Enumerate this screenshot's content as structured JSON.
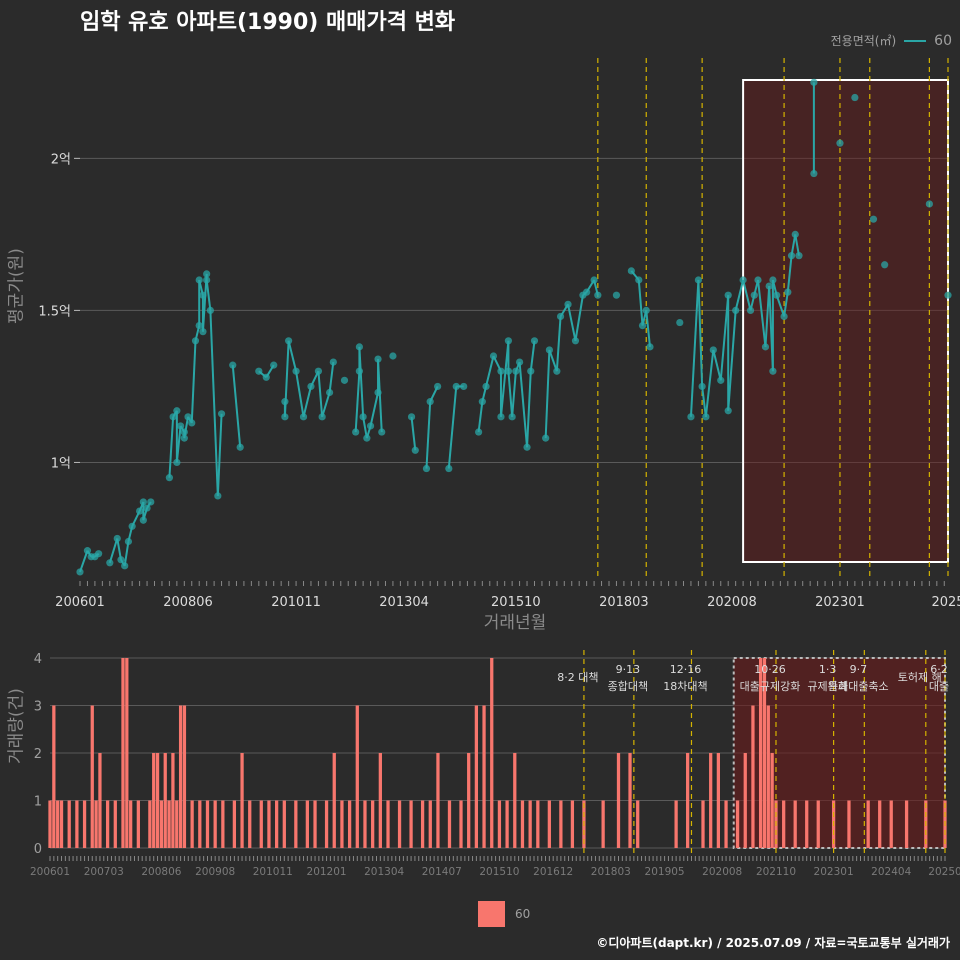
{
  "title": "임학 유호 아파트(1990) 매매가격 변화",
  "footer": "©디아파트(dapt.kr) / 2025.07.09 / 자료=국토교통부 실거래가",
  "colors": {
    "line": "#2aa6a6",
    "bar": "#f8766d",
    "highlight": "#6b1a1a",
    "policy": "#d4b300"
  },
  "chart_data": [
    {
      "type": "line",
      "title": "임학 유호 아파트(1990) 매매가격 변화",
      "xlabel": "거래년월",
      "ylabel": "평균가(원)",
      "legend": {
        "title": "전용면적(㎡)",
        "entries": [
          "60"
        ],
        "placement": "top-right"
      },
      "x_tick_labels": [
        "200601",
        "200806",
        "201011",
        "201304",
        "201510",
        "201803",
        "202008",
        "202301",
        "2025"
      ],
      "y_tick_labels": [
        "1억",
        "1.5억",
        "2억"
      ],
      "y_ticks": [
        1.0,
        1.5,
        2.0
      ],
      "ylim": [
        0.62,
        2.33
      ],
      "xlim": [
        "2006-01",
        "2025-06"
      ],
      "highlight_range": [
        "2020-11",
        "2025-06"
      ],
      "policy_dates": [
        "2017-08",
        "2018-09",
        "2019-12",
        "2021-10",
        "2023-01",
        "2023-09",
        "2025-01",
        "2025-06"
      ],
      "series": [
        {
          "name": "60",
          "points": [
            [
              "2006-01",
              0.64
            ],
            [
              "2006-03",
              0.71
            ],
            [
              "2006-04",
              0.69
            ],
            [
              "2006-05",
              0.69
            ],
            [
              "2006-06",
              0.7
            ],
            [
              "2006-09",
              0.67
            ],
            [
              "2006-11",
              0.75
            ],
            [
              "2006-12",
              0.68
            ],
            [
              "2007-01",
              0.66
            ],
            [
              "2007-02",
              0.74
            ],
            [
              "2007-03",
              0.79
            ],
            [
              "2007-05",
              0.84
            ],
            [
              "2007-06",
              0.87
            ],
            [
              "2007-06",
              0.81
            ],
            [
              "2007-07",
              0.85
            ],
            [
              "2007-08",
              0.87
            ],
            [
              "2008-01",
              0.95
            ],
            [
              "2008-02",
              1.15
            ],
            [
              "2008-03",
              1.17
            ],
            [
              "2008-03",
              1.0
            ],
            [
              "2008-04",
              1.12
            ],
            [
              "2008-05",
              1.1
            ],
            [
              "2008-05",
              1.08
            ],
            [
              "2008-06",
              1.15
            ],
            [
              "2008-07",
              1.13
            ],
            [
              "2008-08",
              1.4
            ],
            [
              "2008-09",
              1.45
            ],
            [
              "2008-09",
              1.6
            ],
            [
              "2008-10",
              1.55
            ],
            [
              "2008-10",
              1.43
            ],
            [
              "2008-11",
              1.62
            ],
            [
              "2008-11",
              1.6
            ],
            [
              "2008-12",
              1.5
            ],
            [
              "2009-02",
              0.89
            ],
            [
              "2009-03",
              1.16
            ],
            [
              "2009-06",
              1.32
            ],
            [
              "2009-08",
              1.05
            ],
            [
              "2010-01",
              1.3
            ],
            [
              "2010-03",
              1.28
            ],
            [
              "2010-05",
              1.32
            ],
            [
              "2010-08",
              1.2
            ],
            [
              "2010-08",
              1.15
            ],
            [
              "2010-09",
              1.4
            ],
            [
              "2010-11",
              1.3
            ],
            [
              "2011-01",
              1.15
            ],
            [
              "2011-03",
              1.25
            ],
            [
              "2011-05",
              1.3
            ],
            [
              "2011-06",
              1.15
            ],
            [
              "2011-08",
              1.23
            ],
            [
              "2011-09",
              1.33
            ],
            [
              "2011-12",
              1.27
            ],
            [
              "2012-03",
              1.1
            ],
            [
              "2012-04",
              1.3
            ],
            [
              "2012-04",
              1.38
            ],
            [
              "2012-05",
              1.15
            ],
            [
              "2012-06",
              1.08
            ],
            [
              "2012-07",
              1.12
            ],
            [
              "2012-09",
              1.23
            ],
            [
              "2012-09",
              1.34
            ],
            [
              "2012-10",
              1.1
            ],
            [
              "2013-01",
              1.35
            ],
            [
              "2013-06",
              1.15
            ],
            [
              "2013-07",
              1.04
            ],
            [
              "2013-10",
              0.98
            ],
            [
              "2013-11",
              1.2
            ],
            [
              "2014-01",
              1.25
            ],
            [
              "2014-04",
              0.98
            ],
            [
              "2014-06",
              1.25
            ],
            [
              "2014-08",
              1.25
            ],
            [
              "2014-12",
              1.1
            ],
            [
              "2015-01",
              1.2
            ],
            [
              "2015-02",
              1.25
            ],
            [
              "2015-04",
              1.35
            ],
            [
              "2015-06",
              1.3
            ],
            [
              "2015-06",
              1.15
            ],
            [
              "2015-08",
              1.4
            ],
            [
              "2015-08",
              1.3
            ],
            [
              "2015-09",
              1.15
            ],
            [
              "2015-10",
              1.3
            ],
            [
              "2015-11",
              1.33
            ],
            [
              "2016-01",
              1.05
            ],
            [
              "2016-02",
              1.3
            ],
            [
              "2016-03",
              1.4
            ],
            [
              "2016-06",
              1.08
            ],
            [
              "2016-07",
              1.37
            ],
            [
              "2016-09",
              1.3
            ],
            [
              "2016-10",
              1.48
            ],
            [
              "2016-12",
              1.52
            ],
            [
              "2017-02",
              1.4
            ],
            [
              "2017-04",
              1.55
            ],
            [
              "2017-05",
              1.56
            ],
            [
              "2017-07",
              1.6
            ],
            [
              "2017-08",
              1.55
            ],
            [
              "2018-01",
              1.55
            ],
            [
              "2018-05",
              1.63
            ],
            [
              "2018-07",
              1.6
            ],
            [
              "2018-08",
              1.45
            ],
            [
              "2018-09",
              1.5
            ],
            [
              "2018-10",
              1.38
            ],
            [
              "2019-06",
              1.46
            ],
            [
              "2019-09",
              1.15
            ],
            [
              "2019-11",
              1.6
            ],
            [
              "2019-12",
              1.25
            ],
            [
              "2020-01",
              1.15
            ],
            [
              "2020-03",
              1.37
            ],
            [
              "2020-05",
              1.27
            ],
            [
              "2020-07",
              1.55
            ],
            [
              "2020-07",
              1.17
            ],
            [
              "2020-09",
              1.5
            ],
            [
              "2020-11",
              1.6
            ],
            [
              "2021-01",
              1.5
            ],
            [
              "2021-02",
              1.55
            ],
            [
              "2021-03",
              1.6
            ],
            [
              "2021-05",
              1.38
            ],
            [
              "2021-06",
              1.58
            ],
            [
              "2021-07",
              1.3
            ],
            [
              "2021-07",
              1.6
            ],
            [
              "2021-08",
              1.55
            ],
            [
              "2021-10",
              1.48
            ],
            [
              "2021-11",
              1.56
            ],
            [
              "2021-12",
              1.68
            ],
            [
              "2022-01",
              1.75
            ],
            [
              "2022-02",
              1.68
            ],
            [
              "2022-06",
              2.25
            ],
            [
              "2022-06",
              1.95
            ],
            [
              "2023-01",
              2.05
            ],
            [
              "2023-05",
              2.2
            ],
            [
              "2023-10",
              1.8
            ],
            [
              "2024-01",
              1.65
            ],
            [
              "2025-01",
              1.85
            ],
            [
              "2025-06",
              1.55
            ]
          ]
        }
      ]
    },
    {
      "type": "bar",
      "xlabel": "",
      "ylabel": "거래량(건)",
      "ylim": [
        0,
        4
      ],
      "y_ticks": [
        0,
        1,
        2,
        3,
        4
      ],
      "x_tick_labels": [
        "200601",
        "200703",
        "200806",
        "200908",
        "201011",
        "201201",
        "201304",
        "201407",
        "201510",
        "201612",
        "201803",
        "201905",
        "202008",
        "202110",
        "202301",
        "202404",
        "20250"
      ],
      "legend": {
        "entries": [
          "60"
        ],
        "placement": "bottom"
      },
      "highlight_range": [
        "2020-11",
        "2025-06"
      ],
      "annotations": [
        {
          "date": "2017-08",
          "lines": [
            "8·2 대책"
          ]
        },
        {
          "date": "2018-09",
          "lines": [
            "9·13",
            "종합대책"
          ]
        },
        {
          "date": "2019-12",
          "lines": [
            "12·16",
            "18차대책"
          ]
        },
        {
          "date": "2021-10",
          "lines": [
            "10·26",
            "대출규제강화"
          ]
        },
        {
          "date": "2023-01",
          "lines": [
            "1·3",
            "규제완화"
          ]
        },
        {
          "date": "2023-09",
          "lines": [
            "9·7",
            "특례대출축소"
          ]
        },
        {
          "date": "2025-01",
          "lines": [
            "토허제 해"
          ]
        },
        {
          "date": "2025-06",
          "lines": [
            "6·2",
            "대출"
          ]
        }
      ],
      "series": [
        {
          "name": "60",
          "values": [
            [
              "2006-01",
              1
            ],
            [
              "2006-02",
              3
            ],
            [
              "2006-03",
              1
            ],
            [
              "2006-04",
              1
            ],
            [
              "2006-06",
              1
            ],
            [
              "2006-08",
              1
            ],
            [
              "2006-10",
              1
            ],
            [
              "2006-12",
              3
            ],
            [
              "2007-01",
              1
            ],
            [
              "2007-02",
              2
            ],
            [
              "2007-04",
              1
            ],
            [
              "2007-06",
              1
            ],
            [
              "2007-08",
              4
            ],
            [
              "2007-09",
              4
            ],
            [
              "2007-10",
              1
            ],
            [
              "2007-12",
              1
            ],
            [
              "2008-03",
              1
            ],
            [
              "2008-04",
              2
            ],
            [
              "2008-05",
              2
            ],
            [
              "2008-06",
              1
            ],
            [
              "2008-07",
              2
            ],
            [
              "2008-08",
              1
            ],
            [
              "2008-09",
              2
            ],
            [
              "2008-10",
              1
            ],
            [
              "2008-11",
              3
            ],
            [
              "2008-12",
              3
            ],
            [
              "2009-02",
              1
            ],
            [
              "2009-04",
              1
            ],
            [
              "2009-06",
              1
            ],
            [
              "2009-08",
              1
            ],
            [
              "2009-10",
              1
            ],
            [
              "2010-01",
              1
            ],
            [
              "2010-03",
              2
            ],
            [
              "2010-05",
              1
            ],
            [
              "2010-08",
              1
            ],
            [
              "2010-10",
              1
            ],
            [
              "2010-12",
              1
            ],
            [
              "2011-02",
              1
            ],
            [
              "2011-05",
              1
            ],
            [
              "2011-08",
              1
            ],
            [
              "2011-10",
              1
            ],
            [
              "2012-01",
              1
            ],
            [
              "2012-03",
              2
            ],
            [
              "2012-05",
              1
            ],
            [
              "2012-07",
              1
            ],
            [
              "2012-09",
              3
            ],
            [
              "2012-11",
              1
            ],
            [
              "2013-01",
              1
            ],
            [
              "2013-03",
              2
            ],
            [
              "2013-05",
              1
            ],
            [
              "2013-08",
              1
            ],
            [
              "2013-11",
              1
            ],
            [
              "2014-02",
              1
            ],
            [
              "2014-04",
              1
            ],
            [
              "2014-06",
              2
            ],
            [
              "2014-09",
              1
            ],
            [
              "2014-12",
              1
            ],
            [
              "2015-02",
              2
            ],
            [
              "2015-04",
              3
            ],
            [
              "2015-06",
              3
            ],
            [
              "2015-08",
              4
            ],
            [
              "2015-10",
              1
            ],
            [
              "2015-12",
              1
            ],
            [
              "2016-02",
              2
            ],
            [
              "2016-04",
              1
            ],
            [
              "2016-06",
              1
            ],
            [
              "2016-08",
              1
            ],
            [
              "2016-11",
              1
            ],
            [
              "2017-02",
              1
            ],
            [
              "2017-05",
              1
            ],
            [
              "2017-08",
              1
            ],
            [
              "2018-01",
              1
            ],
            [
              "2018-05",
              2
            ],
            [
              "2018-08",
              2
            ],
            [
              "2018-10",
              1
            ],
            [
              "2019-08",
              1
            ],
            [
              "2019-11",
              2
            ],
            [
              "2020-03",
              1
            ],
            [
              "2020-05",
              2
            ],
            [
              "2020-07",
              2
            ],
            [
              "2020-09",
              1
            ],
            [
              "2020-12",
              1
            ],
            [
              "2021-02",
              2
            ],
            [
              "2021-04",
              3
            ],
            [
              "2021-06",
              4
            ],
            [
              "2021-07",
              4
            ],
            [
              "2021-08",
              3
            ],
            [
              "2021-09",
              2
            ],
            [
              "2021-10",
              1
            ],
            [
              "2021-12",
              1
            ],
            [
              "2022-03",
              1
            ],
            [
              "2022-06",
              1
            ],
            [
              "2022-09",
              1
            ],
            [
              "2023-01",
              1
            ],
            [
              "2023-05",
              1
            ],
            [
              "2023-10",
              1
            ],
            [
              "2024-01",
              1
            ],
            [
              "2024-04",
              1
            ],
            [
              "2024-08",
              1
            ],
            [
              "2025-01",
              1
            ],
            [
              "2025-06",
              1
            ]
          ]
        }
      ]
    }
  ]
}
